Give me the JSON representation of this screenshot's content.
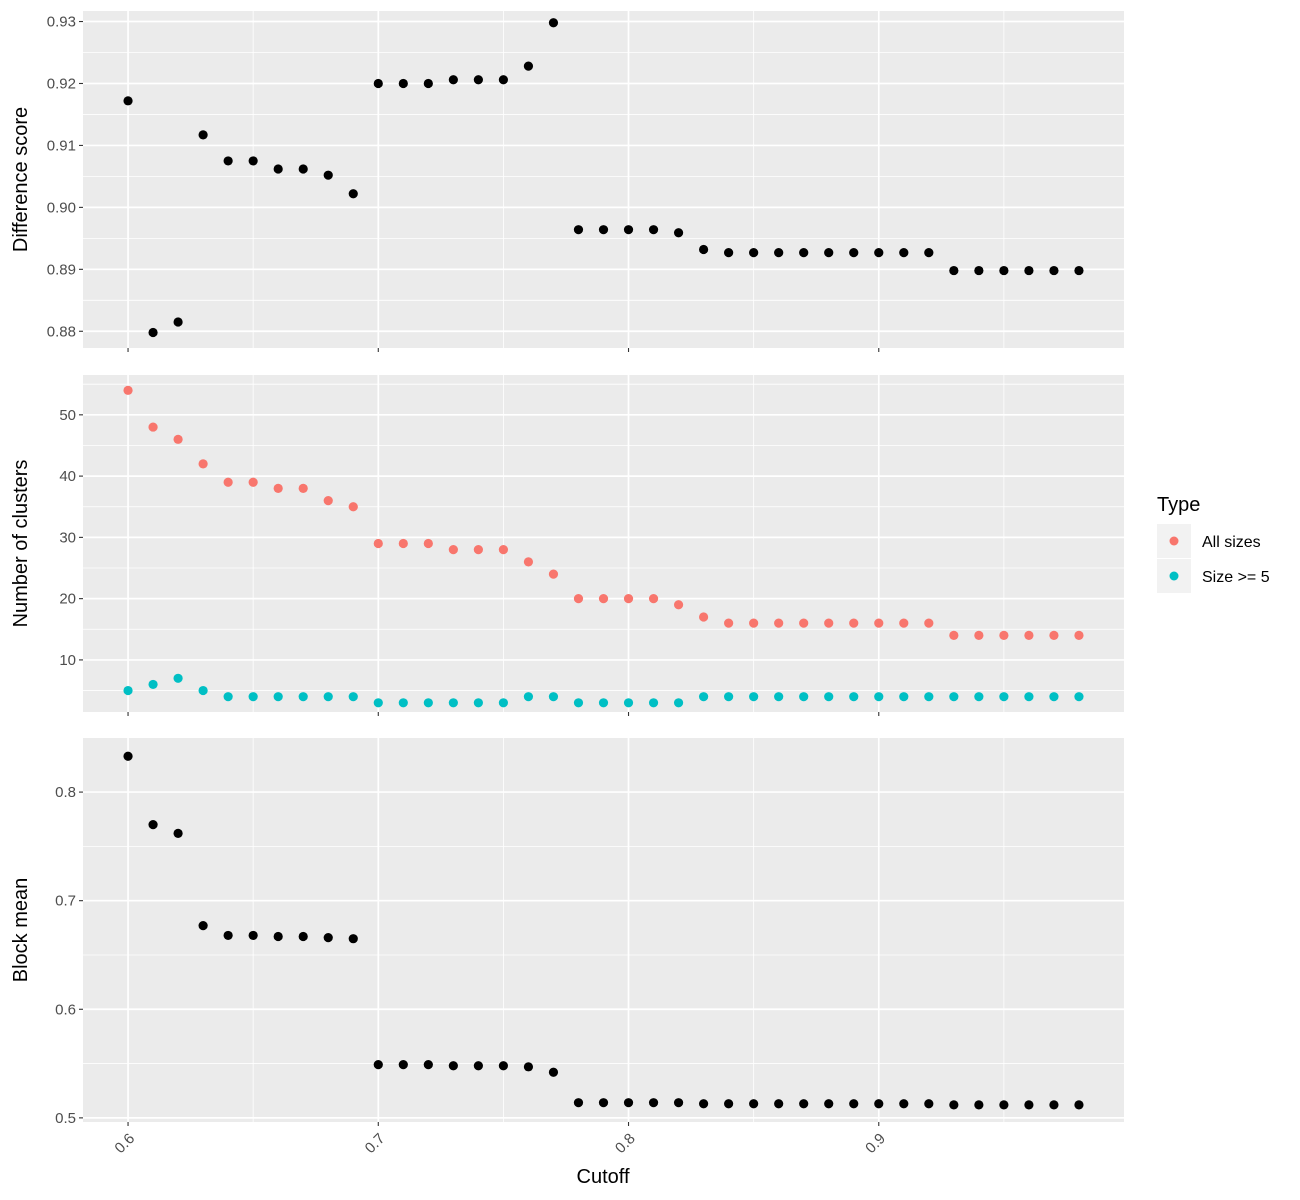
{
  "chart_data": [
    {
      "type": "scatter",
      "panel": "top",
      "ylabel": "Difference score",
      "xlim": [
        0.582,
        0.998
      ],
      "ylim": [
        0.8773,
        0.9317
      ],
      "x_ticks": [
        0.6,
        0.7,
        0.8,
        0.9
      ],
      "y_ticks": [
        0.88,
        0.89,
        0.9,
        0.91,
        0.92,
        0.93
      ],
      "y_tick_labels": [
        "0.88",
        "0.89",
        "0.90",
        "0.91",
        "0.92",
        "0.93"
      ],
      "grid": true,
      "series": [
        {
          "color": "#000000",
          "x": [
            0.6,
            0.61,
            0.62,
            0.63,
            0.64,
            0.65,
            0.66,
            0.67,
            0.68,
            0.69,
            0.7,
            0.71,
            0.72,
            0.73,
            0.74,
            0.75,
            0.76,
            0.77,
            0.78,
            0.79,
            0.8,
            0.81,
            0.82,
            0.83,
            0.84,
            0.85,
            0.86,
            0.87,
            0.88,
            0.89,
            0.9,
            0.91,
            0.92,
            0.93,
            0.94,
            0.95,
            0.96,
            0.97,
            0.98
          ],
          "y": [
            0.9172,
            0.8798,
            0.8815,
            0.9117,
            0.9075,
            0.9075,
            0.9062,
            0.9062,
            0.9052,
            0.9022,
            0.92,
            0.92,
            0.92,
            0.9206,
            0.9206,
            0.9206,
            0.9228,
            0.9298,
            0.8964,
            0.8964,
            0.8964,
            0.8964,
            0.8959,
            0.8932,
            0.8927,
            0.8927,
            0.8927,
            0.8927,
            0.8927,
            0.8927,
            0.8927,
            0.8927,
            0.8927,
            0.8898,
            0.8898,
            0.8898,
            0.8898,
            0.8898,
            0.8898
          ]
        }
      ]
    },
    {
      "type": "scatter",
      "panel": "middle",
      "ylabel": "Number of clusters",
      "xlim": [
        0.582,
        0.998
      ],
      "ylim": [
        1.5,
        56.5
      ],
      "x_ticks": [
        0.6,
        0.7,
        0.8,
        0.9
      ],
      "y_ticks": [
        10,
        20,
        30,
        40,
        50
      ],
      "y_tick_labels": [
        "10",
        "20",
        "30",
        "40",
        "50"
      ],
      "grid": true,
      "legend": {
        "title": "Type",
        "position": "right",
        "entries": [
          "All sizes",
          "Size >= 5"
        ]
      },
      "series": [
        {
          "name": "All sizes",
          "color": "#F8766D",
          "x": [
            0.6,
            0.61,
            0.62,
            0.63,
            0.64,
            0.65,
            0.66,
            0.67,
            0.68,
            0.69,
            0.7,
            0.71,
            0.72,
            0.73,
            0.74,
            0.75,
            0.76,
            0.77,
            0.78,
            0.79,
            0.8,
            0.81,
            0.82,
            0.83,
            0.84,
            0.85,
            0.86,
            0.87,
            0.88,
            0.89,
            0.9,
            0.91,
            0.92,
            0.93,
            0.94,
            0.95,
            0.96,
            0.97,
            0.98
          ],
          "y": [
            54,
            48,
            46,
            42,
            39,
            39,
            38,
            38,
            36,
            35,
            29,
            29,
            29,
            28,
            28,
            28,
            26,
            24,
            20,
            20,
            20,
            20,
            19,
            17,
            16,
            16,
            16,
            16,
            16,
            16,
            16,
            16,
            16,
            14,
            14,
            14,
            14,
            14,
            14
          ]
        },
        {
          "name": "Size >= 5",
          "color": "#00BFC4",
          "x": [
            0.6,
            0.61,
            0.62,
            0.63,
            0.64,
            0.65,
            0.66,
            0.67,
            0.68,
            0.69,
            0.7,
            0.71,
            0.72,
            0.73,
            0.74,
            0.75,
            0.76,
            0.77,
            0.78,
            0.79,
            0.8,
            0.81,
            0.82,
            0.83,
            0.84,
            0.85,
            0.86,
            0.87,
            0.88,
            0.89,
            0.9,
            0.91,
            0.92,
            0.93,
            0.94,
            0.95,
            0.96,
            0.97,
            0.98
          ],
          "y": [
            5,
            6,
            7,
            5,
            4,
            4,
            4,
            4,
            4,
            4,
            3,
            3,
            3,
            3,
            3,
            3,
            4,
            4,
            3,
            3,
            3,
            3,
            3,
            4,
            4,
            4,
            4,
            4,
            4,
            4,
            4,
            4,
            4,
            4,
            4,
            4,
            4,
            4,
            4
          ]
        }
      ]
    },
    {
      "type": "scatter",
      "panel": "bottom",
      "ylabel": "Block mean",
      "xlabel": "Cutoff",
      "xlim": [
        0.582,
        0.998
      ],
      "ylim": [
        0.4962,
        0.8498
      ],
      "x_ticks": [
        0.6,
        0.7,
        0.8,
        0.9
      ],
      "x_tick_labels": [
        "0.6",
        "0.7",
        "0.8",
        "0.9"
      ],
      "y_ticks": [
        0.5,
        0.6,
        0.7,
        0.8
      ],
      "y_tick_labels": [
        "0.5",
        "0.6",
        "0.7",
        "0.8"
      ],
      "grid": true,
      "series": [
        {
          "color": "#000000",
          "x": [
            0.6,
            0.61,
            0.62,
            0.63,
            0.64,
            0.65,
            0.66,
            0.67,
            0.68,
            0.69,
            0.7,
            0.71,
            0.72,
            0.73,
            0.74,
            0.75,
            0.76,
            0.77,
            0.78,
            0.79,
            0.8,
            0.81,
            0.82,
            0.83,
            0.84,
            0.85,
            0.86,
            0.87,
            0.88,
            0.89,
            0.9,
            0.91,
            0.92,
            0.93,
            0.94,
            0.95,
            0.96,
            0.97,
            0.98
          ],
          "y": [
            0.833,
            0.77,
            0.762,
            0.677,
            0.668,
            0.668,
            0.667,
            0.667,
            0.666,
            0.665,
            0.549,
            0.549,
            0.549,
            0.548,
            0.548,
            0.548,
            0.547,
            0.542,
            0.514,
            0.514,
            0.514,
            0.514,
            0.514,
            0.513,
            0.513,
            0.513,
            0.513,
            0.513,
            0.513,
            0.513,
            0.513,
            0.513,
            0.513,
            0.512,
            0.512,
            0.512,
            0.512,
            0.512,
            0.512
          ]
        }
      ]
    }
  ]
}
